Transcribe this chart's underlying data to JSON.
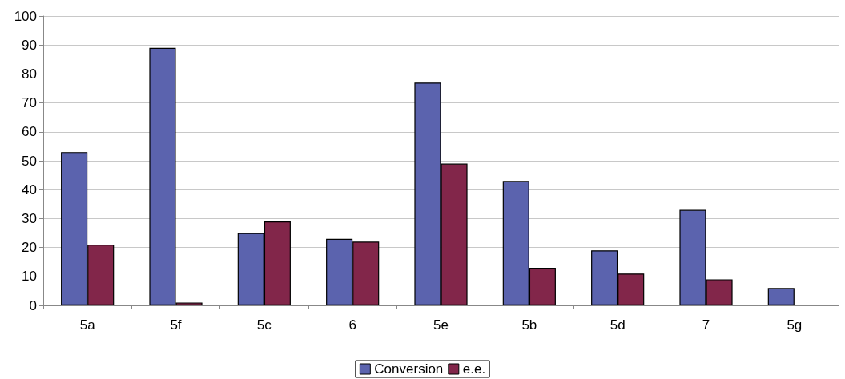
{
  "chart_data": {
    "type": "bar",
    "categories": [
      "5a",
      "5f",
      "5c",
      "6",
      "5e",
      "5b",
      "5d",
      "7",
      "5g"
    ],
    "series": [
      {
        "name": "Conversion",
        "color": "#5b63ae",
        "values": [
          53,
          89,
          25,
          23,
          77,
          43,
          19,
          33,
          6
        ]
      },
      {
        "name": "e.e.",
        "color": "#82264a",
        "values": [
          21,
          1,
          29,
          22,
          49,
          13,
          11,
          9,
          null
        ]
      }
    ],
    "ylim": [
      0,
      100
    ],
    "yticks": [
      0,
      10,
      20,
      30,
      40,
      50,
      60,
      70,
      80,
      90,
      100
    ],
    "grid": "y",
    "legend": "bottom"
  }
}
